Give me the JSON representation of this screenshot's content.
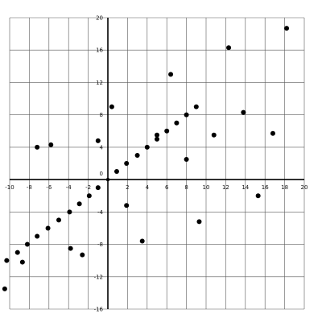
{
  "chart_data": {
    "type": "scatter",
    "title": "",
    "xlabel": "",
    "ylabel": "",
    "xlim": [
      -10,
      20
    ],
    "ylim": [
      -16,
      20
    ],
    "x_ticks": [
      -10,
      -8,
      -6,
      -4,
      -2,
      0,
      2,
      4,
      6,
      8,
      10,
      12,
      14,
      16,
      18,
      20
    ],
    "y_ticks": [
      -16,
      -12,
      -8,
      -4,
      0,
      4,
      8,
      12,
      16,
      20
    ],
    "grid": true,
    "x_tick_labels": [
      "-10",
      "-8",
      "-6",
      "-4",
      "-2",
      "0",
      "2",
      "4",
      "6",
      "8",
      "10",
      "12",
      "14",
      "16",
      "18",
      "20"
    ],
    "y_tick_labels": [
      "-16",
      "-12",
      "-8",
      "-4",
      "0",
      "4",
      "8",
      "12",
      "16",
      "20"
    ],
    "points": [
      {
        "x": -10.5,
        "y": -13.5
      },
      {
        "x": -10.3,
        "y": -10.0
      },
      {
        "x": -9.2,
        "y": -9.0
      },
      {
        "x": -8.7,
        "y": -10.2
      },
      {
        "x": -8.2,
        "y": -8.0
      },
      {
        "x": -7.2,
        "y": -7.0
      },
      {
        "x": -6.1,
        "y": -6.0
      },
      {
        "x": -5.0,
        "y": -5.0
      },
      {
        "x": -3.9,
        "y": -4.0
      },
      {
        "x": -2.9,
        "y": -3.0
      },
      {
        "x": -1.9,
        "y": -2.0
      },
      {
        "x": -1.0,
        "y": -1.0
      },
      {
        "x": 0.9,
        "y": 1.0
      },
      {
        "x": 1.9,
        "y": 2.0
      },
      {
        "x": 3.0,
        "y": 3.0
      },
      {
        "x": 4.0,
        "y": 4.0
      },
      {
        "x": 5.0,
        "y": 5.0
      },
      {
        "x": 6.0,
        "y": 6.0
      },
      {
        "x": 7.0,
        "y": 7.0
      },
      {
        "x": 8.0,
        "y": 8.0
      },
      {
        "x": 9.0,
        "y": 9.0
      },
      {
        "x": 5.0,
        "y": 5.5
      },
      {
        "x": -7.2,
        "y": 4.0
      },
      {
        "x": -5.8,
        "y": 4.3
      },
      {
        "x": -1.0,
        "y": 4.8
      },
      {
        "x": 0.4,
        "y": 9.0
      },
      {
        "x": 1.9,
        "y": -3.2
      },
      {
        "x": -3.8,
        "y": -8.5
      },
      {
        "x": -2.6,
        "y": -9.3
      },
      {
        "x": 3.5,
        "y": -7.6
      },
      {
        "x": 6.4,
        "y": 13.0
      },
      {
        "x": 8.0,
        "y": 2.5
      },
      {
        "x": 9.3,
        "y": -5.2
      },
      {
        "x": 10.8,
        "y": 5.5
      },
      {
        "x": 12.3,
        "y": 16.3
      },
      {
        "x": 13.8,
        "y": 8.3
      },
      {
        "x": 15.3,
        "y": -2.0
      },
      {
        "x": 16.8,
        "y": 5.7
      },
      {
        "x": 18.2,
        "y": 18.7
      }
    ]
  }
}
